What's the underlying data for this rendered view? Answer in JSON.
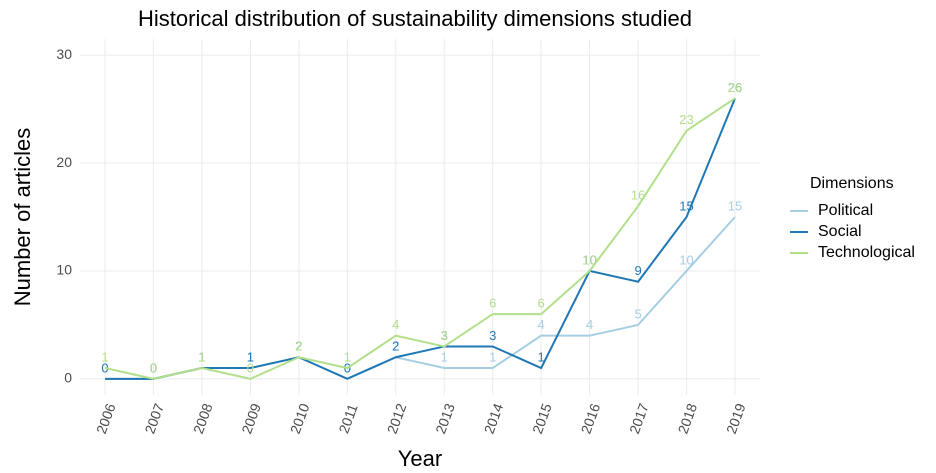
{
  "chart_data": {
    "type": "line",
    "title": "Historical distribution of sustainability dimensions studied",
    "x_label": "Year",
    "y_label": "Number of articles",
    "legend_title": "Dimensions",
    "categories": [
      "2006",
      "2007",
      "2008",
      "2009",
      "2010",
      "2011",
      "2012",
      "2013",
      "2014",
      "2015",
      "2016",
      "2017",
      "2018",
      "2019"
    ],
    "series": [
      {
        "name": "Political",
        "color": "#a6cee3",
        "values": [
          0,
          0,
          1,
          1,
          2,
          0,
          2,
          1,
          1,
          4,
          4,
          5,
          10,
          15
        ]
      },
      {
        "name": "Social",
        "color": "#1f78b4",
        "values": [
          0,
          0,
          1,
          1,
          2,
          0,
          2,
          3,
          3,
          1,
          10,
          9,
          15,
          26
        ]
      },
      {
        "name": "Technological",
        "color": "#b2df8a",
        "values": [
          1,
          0,
          1,
          0,
          2,
          1,
          4,
          3,
          6,
          6,
          10,
          16,
          23,
          26
        ]
      }
    ],
    "ylim": [
      -1.5,
      31.5
    ],
    "yticks": [
      0,
      10,
      20,
      30
    ],
    "grid": true,
    "legend": "right"
  }
}
